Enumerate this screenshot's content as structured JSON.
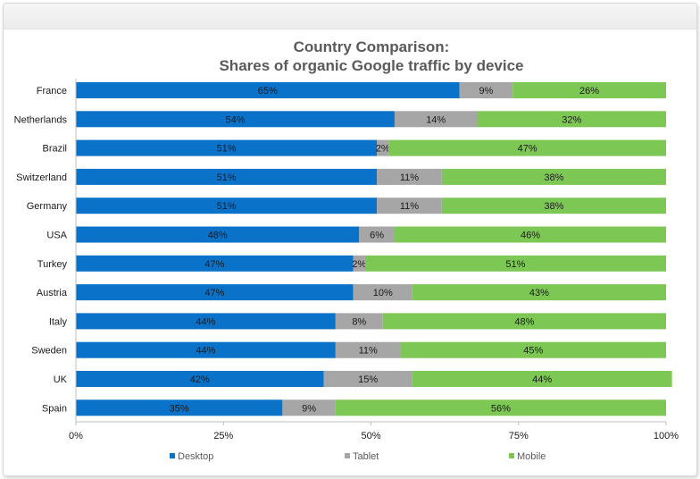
{
  "chart_data": {
    "type": "bar",
    "orientation": "horizontal",
    "stacked": true,
    "title_line1": "Country Comparison:",
    "title_line2": "Shares of organic Google traffic by device",
    "xlabel": "",
    "ylabel": "",
    "xlim": [
      0,
      100
    ],
    "x_ticks": [
      "0%",
      "25%",
      "50%",
      "75%",
      "100%"
    ],
    "grid": false,
    "legend_position": "bottom",
    "categories": [
      "France",
      "Netherlands",
      "Brazil",
      "Switzerland",
      "Germany",
      "USA",
      "Turkey",
      "Austria",
      "Italy",
      "Sweden",
      "UK",
      "Spain"
    ],
    "series": [
      {
        "name": "Desktop",
        "color": "#0a72c8",
        "values": [
          65,
          54,
          51,
          51,
          51,
          48,
          47,
          47,
          44,
          44,
          42,
          35
        ]
      },
      {
        "name": "Tablet",
        "color": "#a6a6a6",
        "values": [
          9,
          14,
          2,
          11,
          11,
          6,
          2,
          10,
          8,
          11,
          15,
          9
        ]
      },
      {
        "name": "Mobile",
        "color": "#7dc855",
        "values": [
          26,
          32,
          47,
          38,
          38,
          46,
          51,
          43,
          48,
          45,
          44,
          56
        ]
      }
    ],
    "labels": [
      [
        "65%",
        "9%",
        "26%"
      ],
      [
        "54%",
        "14%",
        "32%"
      ],
      [
        "51%",
        "2%",
        "47%"
      ],
      [
        "51%",
        "11%",
        "38%"
      ],
      [
        "51%",
        "11%",
        "38%"
      ],
      [
        "48%",
        "6%",
        "46%"
      ],
      [
        "47%",
        "2%",
        "51%"
      ],
      [
        "47%",
        "10%",
        "43%"
      ],
      [
        "44%",
        "8%",
        "48%"
      ],
      [
        "44%",
        "11%",
        "45%"
      ],
      [
        "42%",
        "15%",
        "44%"
      ],
      [
        "35%",
        "9%",
        "56%"
      ]
    ]
  }
}
